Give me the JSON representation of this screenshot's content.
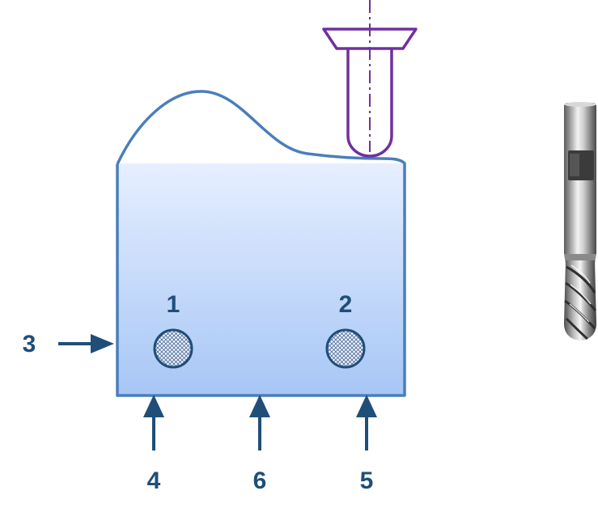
{
  "labels": {
    "hole_1": "1",
    "hole_2": "2",
    "support_3": "3",
    "support_4": "4",
    "support_5": "5",
    "support_6": "6"
  },
  "colors": {
    "part_outline": "#4a7ebb",
    "part_fill_top": "#e6efff",
    "part_fill_bottom": "#a7c6f5",
    "arrow": "#1f4e79",
    "label": "#1f4e79",
    "tool_outline": "#7030a0",
    "hole_outline": "#1f4e79"
  },
  "icons": {
    "locating_arrow": "arrow-icon",
    "cutter_schematic": "ball-end-mill-icon",
    "cutter_photo": "end-mill-icon"
  }
}
